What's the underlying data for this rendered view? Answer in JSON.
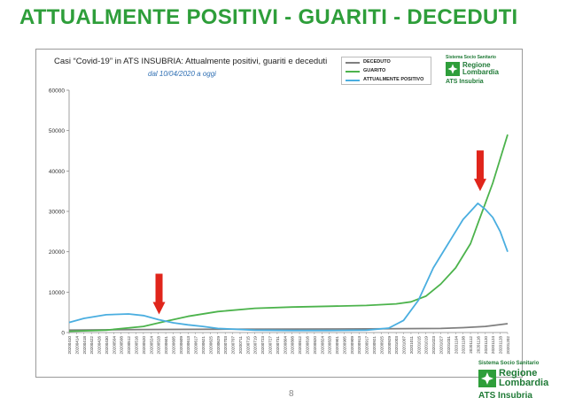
{
  "slide": {
    "title": "ATTUALMENTE POSITIVI - GUARITI - DECEDUTI",
    "page_number": "8"
  },
  "logo": {
    "top_label": "Sistema Socio Sanitario",
    "line1": "Regione",
    "line2": "Lombardia",
    "ats": "ATS Insubria"
  },
  "colors": {
    "title": "#2e9e3a",
    "deceduto": "#7f7f7f",
    "guarito": "#4cb34c",
    "positivo": "#4aaee0",
    "arrow": "#e0251b"
  },
  "chart_data": {
    "type": "line",
    "title": "Casi “Covid-19” in ATS INSUBRIA: Attualmente positivi, guariti e deceduti",
    "subtitle": "dal 10/04/2020 a oggi",
    "xlabel": "",
    "ylabel": "",
    "ylim": [
      0,
      60000
    ],
    "yticks": [
      0,
      10000,
      20000,
      30000,
      40000,
      50000,
      60000
    ],
    "grid": false,
    "legend_position": "top-right",
    "x_tick_labels": [
      "20200410",
      "20200414",
      "20200418",
      "20200422",
      "20200426",
      "20200430",
      "20200504",
      "20200508",
      "20200512",
      "20200516",
      "20200520",
      "20200524",
      "20200528",
      "20200601",
      "20200605",
      "20200609",
      "20200613",
      "20200617",
      "20200621",
      "20200625",
      "20200629",
      "20200703",
      "20200707",
      "20200711",
      "20200715",
      "20200719",
      "20200723",
      "20200727",
      "20200731",
      "20200804",
      "20200808",
      "20200812",
      "20200816",
      "20200820",
      "20200824",
      "20200828",
      "20200901",
      "20200905",
      "20200909",
      "20200913",
      "20200917",
      "20200921",
      "20200925",
      "20200929",
      "20201003",
      "20201007",
      "20201011",
      "20201015",
      "20201019",
      "20201023",
      "20201027",
      "20201031",
      "20201104",
      "20201108",
      "20201112",
      "20201116",
      "20201120",
      "20201124",
      "20201128",
      "20201202"
    ],
    "series": [
      {
        "name": "DECEDUTO",
        "color": "#7f7f7f",
        "points": [
          [
            0,
            600
          ],
          [
            10,
            750
          ],
          [
            20,
            800
          ],
          [
            30,
            850
          ],
          [
            40,
            900
          ],
          [
            50,
            1000
          ],
          [
            53,
            1200
          ],
          [
            56,
            1500
          ],
          [
            59,
            2200
          ]
        ]
      },
      {
        "name": "GUARITO",
        "color": "#4cb34c",
        "points": [
          [
            0,
            300
          ],
          [
            5,
            600
          ],
          [
            10,
            1500
          ],
          [
            13,
            2800
          ],
          [
            16,
            4000
          ],
          [
            20,
            5200
          ],
          [
            25,
            6000
          ],
          [
            30,
            6300
          ],
          [
            35,
            6500
          ],
          [
            40,
            6700
          ],
          [
            44,
            7100
          ],
          [
            46,
            7600
          ],
          [
            48,
            9000
          ],
          [
            50,
            12000
          ],
          [
            52,
            16000
          ],
          [
            54,
            22000
          ],
          [
            55,
            27000
          ],
          [
            56,
            32000
          ],
          [
            57,
            37000
          ],
          [
            58,
            43000
          ],
          [
            59,
            49000
          ]
        ]
      },
      {
        "name": "ATTUALMENTE POSITIVO",
        "color": "#4aaee0",
        "points": [
          [
            0,
            2500
          ],
          [
            2,
            3500
          ],
          [
            5,
            4400
          ],
          [
            8,
            4600
          ],
          [
            10,
            4200
          ],
          [
            12,
            3200
          ],
          [
            14,
            2400
          ],
          [
            16,
            1900
          ],
          [
            18,
            1500
          ],
          [
            20,
            1000
          ],
          [
            25,
            600
          ],
          [
            30,
            500
          ],
          [
            35,
            500
          ],
          [
            40,
            600
          ],
          [
            43,
            1100
          ],
          [
            45,
            3000
          ],
          [
            47,
            8000
          ],
          [
            49,
            16000
          ],
          [
            51,
            22000
          ],
          [
            53,
            28000
          ],
          [
            54,
            30000
          ],
          [
            55,
            32000
          ],
          [
            56,
            30500
          ],
          [
            57,
            28500
          ],
          [
            58,
            25000
          ],
          [
            59,
            20000
          ]
        ]
      }
    ]
  }
}
